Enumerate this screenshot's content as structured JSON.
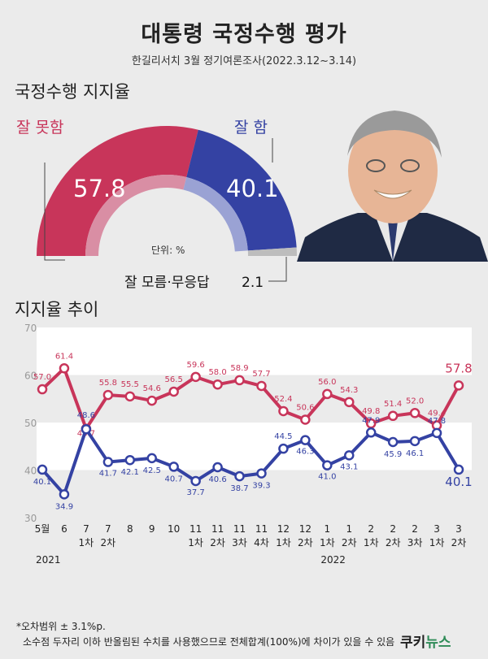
{
  "header": {
    "title": "대통령 국정수행 평가",
    "subtitle": "한길리서치  3월 정기여론조사(2022.3.12~3.14)"
  },
  "approval": {
    "section_title": "국정수행 지지율",
    "bad_label": "잘 못함",
    "good_label": "잘 함",
    "bad_value": "57.8",
    "good_value": "40.1",
    "unit_note": "단위: %",
    "dk_label": "잘 모름·무응답",
    "dk_value": "2.1",
    "colors": {
      "bad": "#c8355a",
      "good": "#3442a3",
      "dk": "#bdbdbd"
    }
  },
  "trend": {
    "section_title": "지지율 추이"
  },
  "chart_data": {
    "type": "line",
    "x": [
      "5월",
      "6",
      "7\n1차",
      "7\n2차",
      "8",
      "9",
      "10",
      "11\n1차",
      "11\n2차",
      "11\n3차",
      "11\n4차",
      "12\n1차",
      "12\n2차",
      "1\n1차",
      "1\n2차",
      "2\n1차",
      "2\n2차",
      "2\n3차",
      "3\n1차",
      "3\n2차"
    ],
    "year_labels": [
      {
        "label": "2021",
        "index": 0
      },
      {
        "label": "2022",
        "index": 13
      }
    ],
    "ylim": [
      30,
      70
    ],
    "yticks": [
      30,
      40,
      50,
      60,
      70
    ],
    "grid": "horizontal bands",
    "series": [
      {
        "color": "#c8355a",
        "values": [
          57.0,
          61.4,
          48.7,
          55.8,
          55.5,
          54.6,
          56.5,
          59.6,
          58.0,
          58.9,
          57.7,
          52.4,
          50.6,
          56.0,
          54.3,
          49.8,
          51.4,
          52.0,
          49.4,
          57.8
        ]
      },
      {
        "color": "#3442a3",
        "values": [
          40.1,
          34.9,
          48.6,
          41.7,
          42.1,
          42.5,
          40.7,
          37.7,
          40.6,
          38.7,
          39.3,
          44.5,
          46.3,
          41.0,
          43.1,
          47.9,
          45.9,
          46.1,
          47.8,
          40.1
        ]
      }
    ]
  },
  "footer": {
    "note1": "*오차범위 ± 3.1%p.",
    "note2": "소수점 두자리 이하 반올림된 수치를 사용했으므로 전체합계(100%)에 차이가 있을 수 있음",
    "brand_a": "쿠키",
    "brand_b": "뉴스"
  }
}
